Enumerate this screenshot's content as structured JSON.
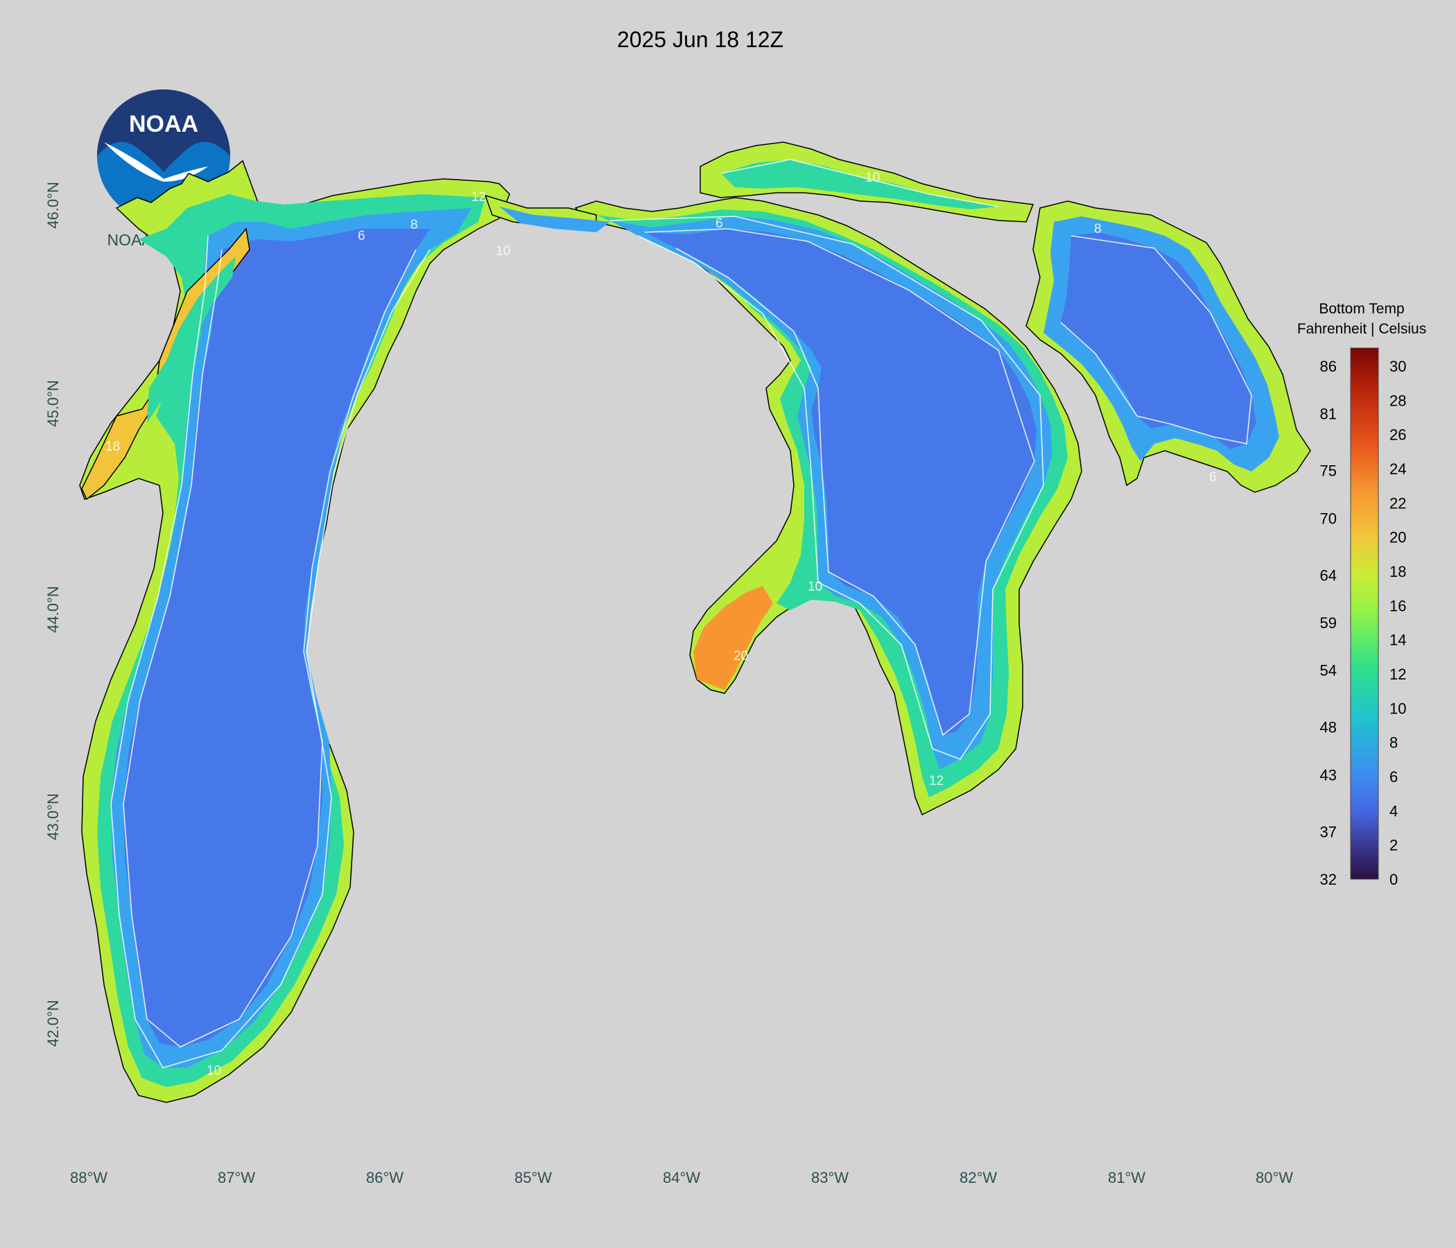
{
  "title": "2025 Jun 18 12Z",
  "credit": "NOAA/GLERL",
  "logo": {
    "text": "NOAA",
    "colors": {
      "navy": "#1f3a78",
      "blue": "#0b74c4",
      "white": "#ffffff"
    }
  },
  "longitude_ticks": [
    "88°W",
    "87°W",
    "86°W",
    "85°W",
    "84°W",
    "83°W",
    "82°W",
    "81°W",
    "80°W"
  ],
  "latitude_ticks": [
    "46.0°N",
    "45.0°N",
    "44.0°N",
    "43.0°N",
    "42.0°N"
  ],
  "colorbar": {
    "title_line1": "Bottom Temp",
    "title_line2": "Fahrenheit | Celsius",
    "fahrenheit_labels": [
      "86",
      "81",
      "75",
      "70",
      "64",
      "59",
      "54",
      "48",
      "43",
      "37",
      "32"
    ],
    "celsius_labels": [
      "30",
      "28",
      "26",
      "24",
      "22",
      "20",
      "18",
      "16",
      "14",
      "12",
      "10",
      "8",
      "6",
      "4",
      "2",
      "0"
    ],
    "range_celsius": [
      0,
      31
    ],
    "color_stops": [
      "#2b1140",
      "#3b3c9a",
      "#4668e3",
      "#3b8ff0",
      "#1fc3cf",
      "#2ee08a",
      "#8ff247",
      "#c9ee35",
      "#f2c43a",
      "#f79630",
      "#e8541c",
      "#b9260b",
      "#7a0403"
    ]
  },
  "contour_labels": [
    "6",
    "8",
    "10",
    "12",
    "18",
    "20"
  ],
  "colors": {
    "background": "#d3d3d3",
    "cold_water": "#4678ea",
    "land_outline": "#000000",
    "contour": "#ffffff"
  }
}
